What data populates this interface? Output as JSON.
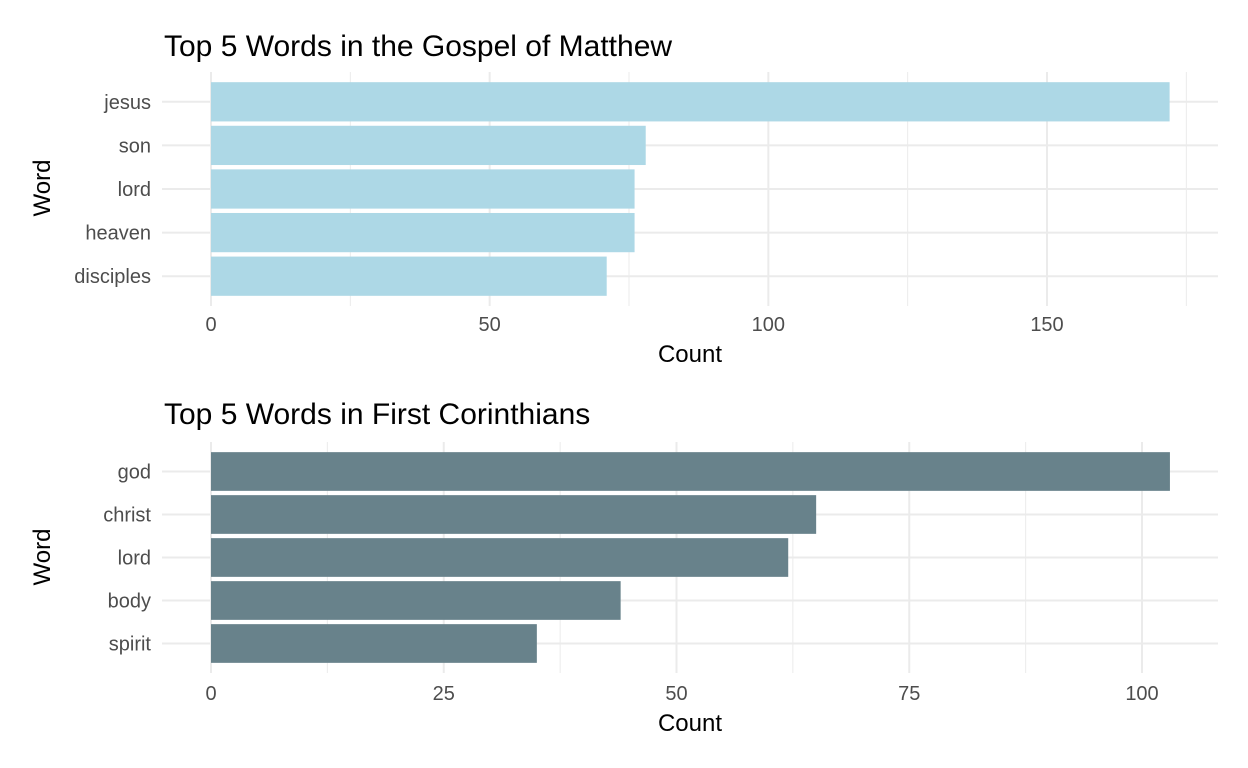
{
  "chart_data": [
    {
      "type": "bar",
      "orientation": "horizontal",
      "title": "Top 5 Words in the Gospel of Matthew",
      "xlabel": "Count",
      "ylabel": "Word",
      "categories": [
        "jesus",
        "son",
        "lord",
        "heaven",
        "disciples"
      ],
      "values": [
        172,
        78,
        76,
        76,
        71
      ],
      "xlim": [
        0,
        180
      ],
      "xticks": [
        0,
        50,
        100,
        150
      ],
      "bar_color": "#add8e6",
      "grid": true,
      "legend": "none"
    },
    {
      "type": "bar",
      "orientation": "horizontal",
      "title": "Top 5 Words in First Corinthians",
      "xlabel": "Count",
      "ylabel": "Word",
      "categories": [
        "god",
        "christ",
        "lord",
        "body",
        "spirit"
      ],
      "values": [
        103,
        65,
        62,
        44,
        35
      ],
      "xlim": [
        0,
        108
      ],
      "xticks": [
        0,
        25,
        50,
        75,
        100
      ],
      "bar_color": "#68828b",
      "grid": true,
      "legend": "none"
    }
  ]
}
